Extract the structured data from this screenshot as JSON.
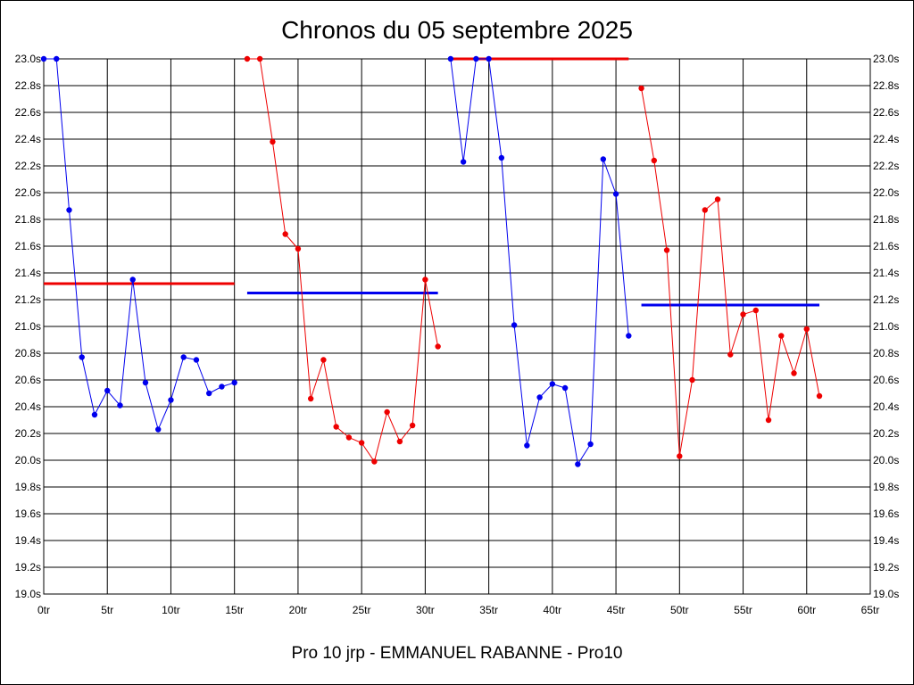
{
  "chart_data": {
    "type": "line",
    "title": "Chronos du 05 septembre 2025",
    "xlabel": "Pro 10 jrp - EMMANUEL RABANNE - Pro10",
    "ylabel": "",
    "xlim": [
      0,
      65
    ],
    "ylim": [
      19.0,
      23.0
    ],
    "grid": true,
    "x_tick_labels": [
      "0tr",
      "5tr",
      "10tr",
      "15tr",
      "20tr",
      "25tr",
      "30tr",
      "35tr",
      "40tr",
      "45tr",
      "50tr",
      "55tr",
      "60tr",
      "65tr"
    ],
    "y_tick_labels": [
      "19.0s",
      "19.2s",
      "19.4s",
      "19.6s",
      "19.8s",
      "20.0s",
      "20.2s",
      "20.4s",
      "20.6s",
      "20.8s",
      "21.0s",
      "21.2s",
      "21.4s",
      "21.6s",
      "21.8s",
      "22.0s",
      "22.2s",
      "22.4s",
      "22.6s",
      "22.8s",
      "23.0s"
    ],
    "series": [
      {
        "color": "#0000ee",
        "points": [
          [
            0,
            23.0
          ],
          [
            1,
            23.0
          ],
          [
            2,
            21.87
          ],
          [
            3,
            20.77
          ],
          [
            4,
            20.34
          ],
          [
            5,
            20.52
          ],
          [
            6,
            20.41
          ],
          [
            7,
            21.35
          ],
          [
            8,
            20.58
          ],
          [
            9,
            20.23
          ],
          [
            10,
            20.45
          ],
          [
            11,
            20.77
          ],
          [
            12,
            20.75
          ],
          [
            13,
            20.5
          ],
          [
            14,
            20.55
          ],
          [
            15,
            20.58
          ]
        ]
      },
      {
        "color": "#ee0000",
        "points": [
          [
            16,
            23.0
          ],
          [
            17,
            23.0
          ],
          [
            18,
            22.38
          ],
          [
            19,
            21.69
          ],
          [
            20,
            21.58
          ],
          [
            21,
            20.46
          ],
          [
            22,
            20.75
          ],
          [
            23,
            20.25
          ],
          [
            24,
            20.17
          ],
          [
            25,
            20.13
          ],
          [
            26,
            19.99
          ],
          [
            27,
            20.36
          ],
          [
            28,
            20.14
          ],
          [
            29,
            20.26
          ],
          [
            30,
            21.35
          ],
          [
            31,
            20.85
          ]
        ]
      },
      {
        "color": "#0000ee",
        "points": [
          [
            32,
            23.0
          ],
          [
            33,
            22.23
          ],
          [
            34,
            23.0
          ],
          [
            35,
            23.0
          ],
          [
            36,
            22.26
          ],
          [
            37,
            21.01
          ],
          [
            38,
            20.11
          ],
          [
            39,
            20.47
          ],
          [
            40,
            20.57
          ],
          [
            41,
            20.54
          ],
          [
            42,
            19.97
          ],
          [
            43,
            20.12
          ],
          [
            44,
            22.25
          ],
          [
            45,
            21.99
          ],
          [
            46,
            20.93
          ]
        ]
      },
      {
        "color": "#ee0000",
        "points": [
          [
            47,
            22.78
          ],
          [
            48,
            22.24
          ],
          [
            49,
            21.57
          ],
          [
            50,
            20.03
          ],
          [
            51,
            20.6
          ],
          [
            52,
            21.87
          ],
          [
            53,
            21.95
          ],
          [
            54,
            20.79
          ],
          [
            55,
            21.09
          ],
          [
            56,
            21.12
          ],
          [
            57,
            20.3
          ],
          [
            58,
            20.93
          ],
          [
            59,
            20.65
          ],
          [
            60,
            20.98
          ],
          [
            61,
            20.48
          ]
        ]
      }
    ],
    "averages": [
      {
        "color": "#ee0000",
        "x_start": 0,
        "x_end": 15,
        "value": 21.32
      },
      {
        "color": "#0000ee",
        "x_start": 16,
        "x_end": 31,
        "value": 21.25
      },
      {
        "color": "#ee0000",
        "x_start": 32,
        "x_end": 46,
        "value": 23.0
      },
      {
        "color": "#0000ee",
        "x_start": 47,
        "x_end": 61,
        "value": 21.16
      }
    ]
  }
}
